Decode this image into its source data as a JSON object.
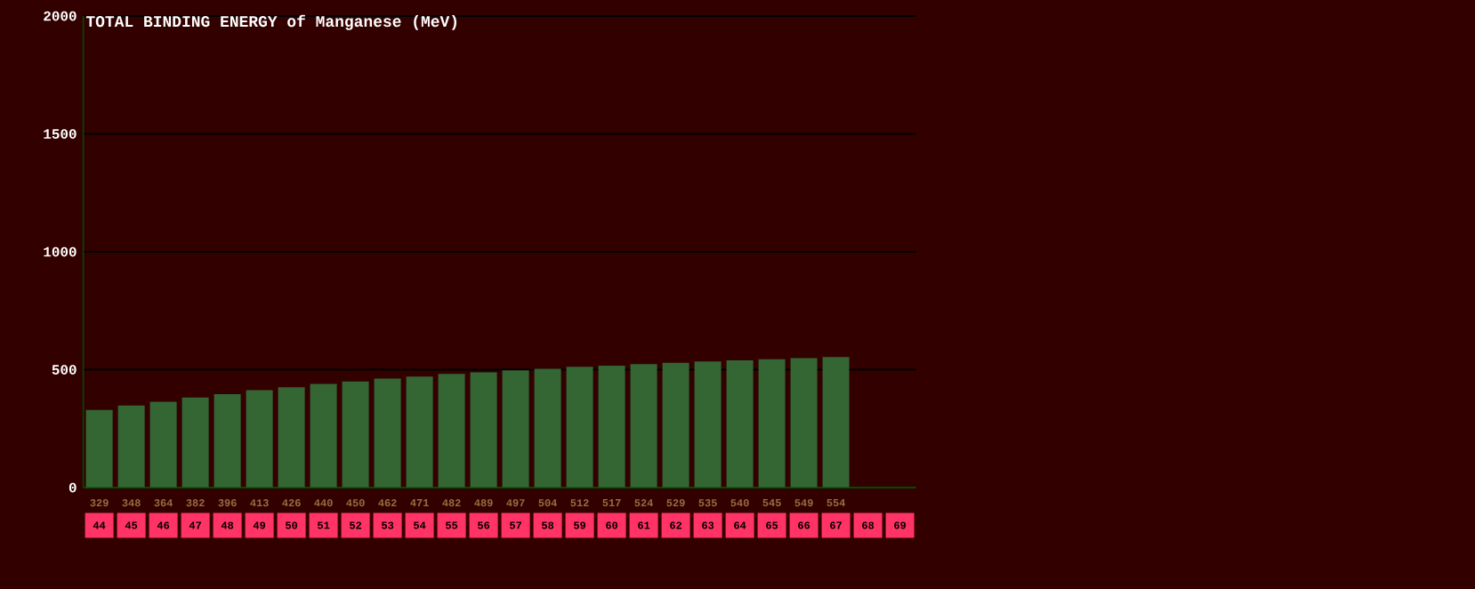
{
  "chart_data": {
    "type": "bar",
    "title": "TOTAL BINDING ENERGY of Manganese (MeV)",
    "categories": [
      "44",
      "45",
      "46",
      "47",
      "48",
      "49",
      "50",
      "51",
      "52",
      "53",
      "54",
      "55",
      "56",
      "57",
      "58",
      "59",
      "60",
      "61",
      "62",
      "63",
      "64",
      "65",
      "66",
      "67",
      "68",
      "69"
    ],
    "values": [
      329,
      348,
      364,
      382,
      396,
      413,
      426,
      440,
      450,
      462,
      471,
      482,
      489,
      497,
      504,
      512,
      517,
      524,
      529,
      535,
      540,
      545,
      549,
      554,
      null,
      null
    ],
    "color": "#336633",
    "ylim": [
      0,
      2000
    ],
    "yticks": [
      0,
      500,
      1000,
      1500,
      2000
    ],
    "grid": "y",
    "data_labels": true
  }
}
